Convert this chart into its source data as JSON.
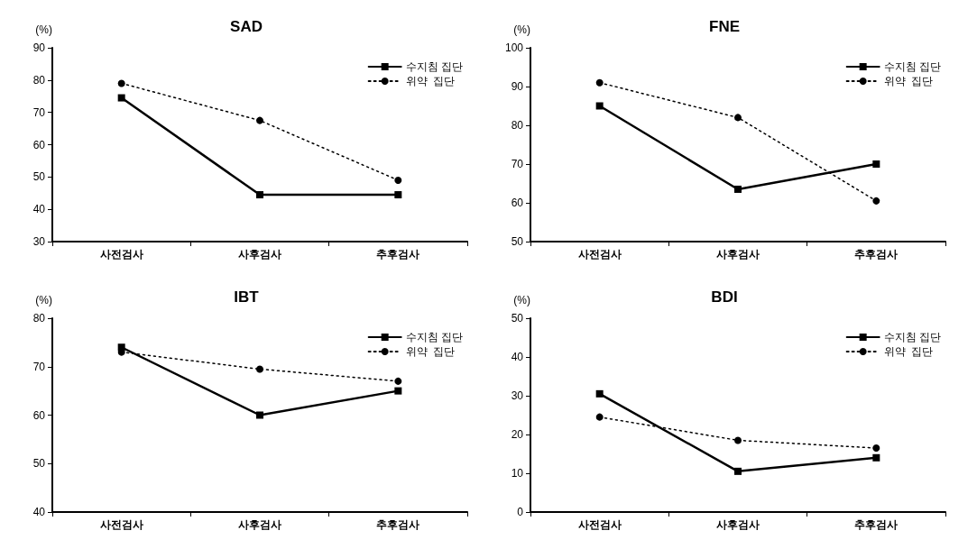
{
  "chart_data": [
    {
      "type": "line",
      "title": "SAD",
      "ylabel": "(%)",
      "categories": [
        "사전검사",
        "사후검사",
        "추후검사"
      ],
      "ylim": [
        30,
        90
      ],
      "yticks": [
        30,
        40,
        50,
        60,
        70,
        80,
        90
      ],
      "grid": false,
      "legend": "top right",
      "series": [
        {
          "name": "수지침 집단",
          "color": "#000000",
          "marker": "square",
          "line_style": "solid",
          "values": [
            74.5,
            44.5,
            44.5
          ]
        },
        {
          "name": "위약  집단",
          "color": "#000000",
          "marker": "circle",
          "line_style": "dotted",
          "values": [
            79,
            67.5,
            49
          ]
        }
      ]
    },
    {
      "type": "line",
      "title": "FNE",
      "ylabel": "(%)",
      "categories": [
        "사전검사",
        "사후검사",
        "추후검사"
      ],
      "ylim": [
        50,
        100
      ],
      "yticks": [
        50,
        60,
        70,
        80,
        90,
        100
      ],
      "grid": false,
      "legend": "top right",
      "series": [
        {
          "name": "수지침 집단",
          "color": "#000000",
          "marker": "square",
          "line_style": "solid",
          "values": [
            85,
            63.5,
            70
          ]
        },
        {
          "name": "위약  집단",
          "color": "#000000",
          "marker": "circle",
          "line_style": "dotted",
          "values": [
            91,
            82,
            60.5
          ]
        }
      ]
    },
    {
      "type": "line",
      "title": "IBT",
      "ylabel": "(%)",
      "categories": [
        "사전검사",
        "사후검사",
        "추후검사"
      ],
      "ylim": [
        40,
        80
      ],
      "yticks": [
        40,
        50,
        60,
        70,
        80
      ],
      "grid": false,
      "legend": "top right",
      "series": [
        {
          "name": "수지침 집단",
          "color": "#000000",
          "marker": "square",
          "line_style": "solid",
          "values": [
            74,
            60,
            65
          ]
        },
        {
          "name": "위약  집단",
          "color": "#000000",
          "marker": "circle",
          "line_style": "dotted",
          "values": [
            73,
            69.5,
            67
          ]
        }
      ]
    },
    {
      "type": "line",
      "title": "BDI",
      "ylabel": "(%)",
      "categories": [
        "사전검사",
        "사후검사",
        "추후검사"
      ],
      "ylim": [
        0,
        50
      ],
      "yticks": [
        0,
        10,
        20,
        30,
        40,
        50
      ],
      "grid": false,
      "legend": "top right",
      "series": [
        {
          "name": "수지침 집단",
          "color": "#000000",
          "marker": "square",
          "line_style": "solid",
          "values": [
            30.5,
            10.5,
            14
          ]
        },
        {
          "name": "위약  집단",
          "color": "#000000",
          "marker": "circle",
          "line_style": "dotted",
          "values": [
            24.5,
            18.5,
            16.5
          ]
        }
      ]
    }
  ]
}
